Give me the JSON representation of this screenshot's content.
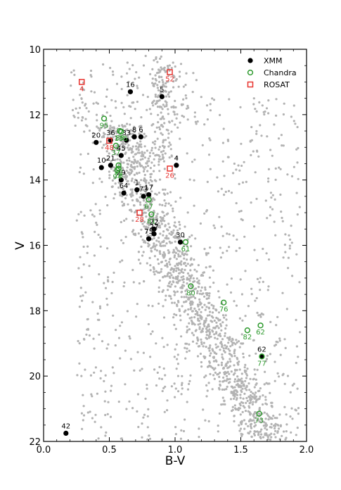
{
  "chart_data": {
    "type": "scatter",
    "xlabel": "B-V",
    "ylabel": "V",
    "xlim": [
      0.0,
      2.0
    ],
    "ylim": [
      22,
      10
    ],
    "y_inverted": true,
    "xticks": [
      "0.0",
      "0.5",
      "1.0",
      "1.5",
      "2.0"
    ],
    "yticks": [
      "10",
      "12",
      "14",
      "16",
      "18",
      "20",
      "22"
    ],
    "grid": false,
    "legend_position": "top-right",
    "legend": [
      {
        "name": "XMM",
        "marker": "filled-circle",
        "color": "#000000"
      },
      {
        "name": "Chandra",
        "marker": "open-circle",
        "color": "#2e9a2e"
      },
      {
        "name": "ROSAT",
        "marker": "open-square",
        "color": "#e8332f"
      }
    ],
    "background_color": "#b3b3b3",
    "series": [
      {
        "name": "XMM",
        "color": "#000000",
        "points": [
          {
            "label": "16",
            "x": 0.66,
            "y": 11.3
          },
          {
            "label": "5",
            "x": 0.9,
            "y": 11.45
          },
          {
            "label": "20",
            "x": 0.4,
            "y": 12.85
          },
          {
            "label": "36",
            "x": 0.51,
            "y": 12.78
          },
          {
            "label": "33",
            "x": 0.63,
            "y": 12.78
          },
          {
            "label": "8",
            "x": 0.69,
            "y": 12.68
          },
          {
            "label": "6",
            "x": 0.74,
            "y": 12.68
          },
          {
            "label": "45",
            "x": 0.59,
            "y": 13.25
          },
          {
            "label": "10",
            "x": 0.44,
            "y": 13.62
          },
          {
            "label": "21",
            "x": 0.51,
            "y": 13.55
          },
          {
            "label": "4",
            "x": 1.01,
            "y": 13.55
          },
          {
            "label": "29",
            "x": 0.59,
            "y": 14.0
          },
          {
            "label": "64",
            "x": 0.61,
            "y": 14.4
          },
          {
            "label": "1",
            "x": 0.71,
            "y": 14.3
          },
          {
            "label": "73",
            "x": 0.76,
            "y": 14.5
          },
          {
            "label": "17",
            "x": 0.8,
            "y": 14.45
          },
          {
            "label": "22",
            "x": 0.84,
            "y": 15.5
          },
          {
            "label": "27",
            "x": 0.84,
            "y": 15.65
          },
          {
            "label": "75",
            "x": 0.8,
            "y": 15.8
          },
          {
            "label": "30",
            "x": 1.04,
            "y": 15.9
          },
          {
            "label": "62",
            "x": 1.66,
            "y": 19.4
          },
          {
            "label": "42",
            "x": 0.17,
            "y": 21.75
          }
        ]
      },
      {
        "name": "Chandra",
        "color": "#2e9a2e",
        "points": [
          {
            "label": "95",
            "x": 0.46,
            "y": 12.12
          },
          {
            "label": "155",
            "x": 0.59,
            "y": 12.52
          },
          {
            "label": "88",
            "x": 0.58,
            "y": 12.5
          },
          {
            "label": "37",
            "x": 0.55,
            "y": 12.95
          },
          {
            "label": "72",
            "x": 0.57,
            "y": 13.55
          },
          {
            "label": "78",
            "x": 0.57,
            "y": 13.65
          },
          {
            "label": "94",
            "x": 0.56,
            "y": 13.7
          },
          {
            "label": "67",
            "x": 0.8,
            "y": 14.6
          },
          {
            "label": "81",
            "x": 0.82,
            "y": 15.05
          },
          {
            "label": "61",
            "x": 1.08,
            "y": 15.9
          },
          {
            "label": "80",
            "x": 1.12,
            "y": 17.25
          },
          {
            "label": "76",
            "x": 1.37,
            "y": 17.75
          },
          {
            "label": "82",
            "x": 1.55,
            "y": 18.6
          },
          {
            "label": "62",
            "x": 1.65,
            "y": 18.45
          },
          {
            "label": "77",
            "x": 1.66,
            "y": 19.4
          },
          {
            "label": "73",
            "x": 1.64,
            "y": 21.15
          }
        ]
      },
      {
        "name": "ROSAT",
        "color": "#e8332f",
        "points": [
          {
            "label": "4",
            "x": 0.29,
            "y": 11.0
          },
          {
            "label": "52",
            "x": 0.96,
            "y": 10.7
          },
          {
            "label": "48",
            "x": 0.5,
            "y": 12.8
          },
          {
            "label": "26",
            "x": 0.96,
            "y": 13.65
          },
          {
            "label": "28",
            "x": 0.73,
            "y": 15.0
          }
        ]
      }
    ]
  }
}
